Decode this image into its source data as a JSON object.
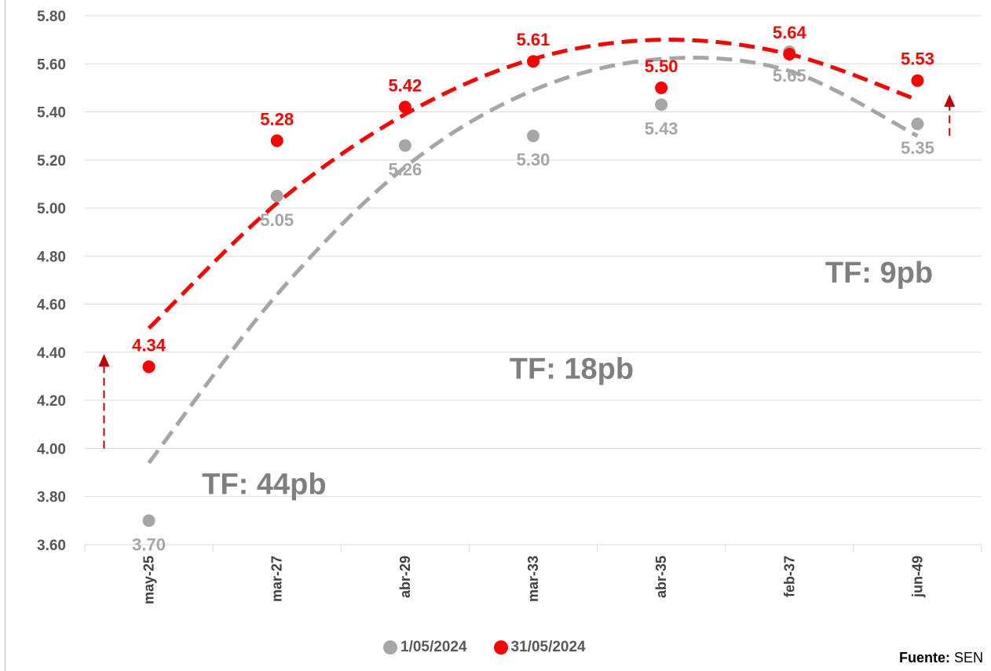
{
  "chart_data": {
    "type": "scatter",
    "categories": [
      "may-25",
      "mar-27",
      "abr-29",
      "mar-33",
      "abr-35",
      "feb-37",
      "jun-49"
    ],
    "ylim": [
      3.6,
      5.8
    ],
    "yticks": [
      "3.60",
      "3.80",
      "4.00",
      "4.20",
      "4.40",
      "4.60",
      "4.80",
      "5.00",
      "5.20",
      "5.40",
      "5.60",
      "5.80"
    ],
    "grid": true,
    "legend_position": "bottom",
    "series": [
      {
        "name": "1/05/2024",
        "color": "#a6a6a6",
        "values": [
          3.7,
          5.05,
          5.26,
          5.3,
          5.43,
          5.65,
          5.35
        ],
        "labels": [
          "3.70",
          "5.05",
          "5.26",
          "5.30",
          "5.43",
          "5.65",
          "5.35"
        ]
      },
      {
        "name": "31/05/2024",
        "color": "#ff0000",
        "values": [
          4.34,
          5.28,
          5.42,
          5.61,
          5.5,
          5.64,
          5.53
        ],
        "labels": [
          "4.34",
          "5.28",
          "5.42",
          "5.61",
          "5.50",
          "5.64",
          "5.53"
        ]
      }
    ],
    "trendlines": [
      {
        "series": "1/05/2024",
        "color": "#a6a6a6",
        "style": "dashed",
        "type": "polynomial",
        "points": [
          [
            0,
            3.94
          ],
          [
            1,
            4.64
          ],
          [
            2,
            5.17
          ],
          [
            3,
            5.49
          ],
          [
            4,
            5.62
          ],
          [
            5,
            5.57
          ],
          [
            6,
            5.3
          ]
        ]
      },
      {
        "series": "31/05/2024",
        "color": "#ff0000",
        "style": "dashed",
        "type": "polynomial",
        "points": [
          [
            0,
            4.5
          ],
          [
            1,
            5.02
          ],
          [
            2,
            5.39
          ],
          [
            3,
            5.62
          ],
          [
            4,
            5.7
          ],
          [
            5,
            5.64
          ],
          [
            6,
            5.45
          ]
        ]
      }
    ],
    "annotations": [
      {
        "text": "TF: 44pb",
        "x": 0.9,
        "y": 3.81
      },
      {
        "text": "TF: 18pb",
        "x": 3.3,
        "y": 4.29
      },
      {
        "text": "TF: 9pb",
        "x": 5.7,
        "y": 4.69
      }
    ],
    "arrows": [
      {
        "x": -0.35,
        "from": 4.0,
        "to": 4.38,
        "color": "#c00000"
      },
      {
        "x": 6.25,
        "from": 5.3,
        "to": 5.46,
        "color": "#c00000"
      }
    ]
  },
  "legend": {
    "items": [
      {
        "label": "1/05/2024",
        "color": "#a6a6a6"
      },
      {
        "label": "31/05/2024",
        "color": "#ff0000"
      }
    ]
  },
  "source": {
    "label": "Fuente:",
    "value": " SEN"
  }
}
